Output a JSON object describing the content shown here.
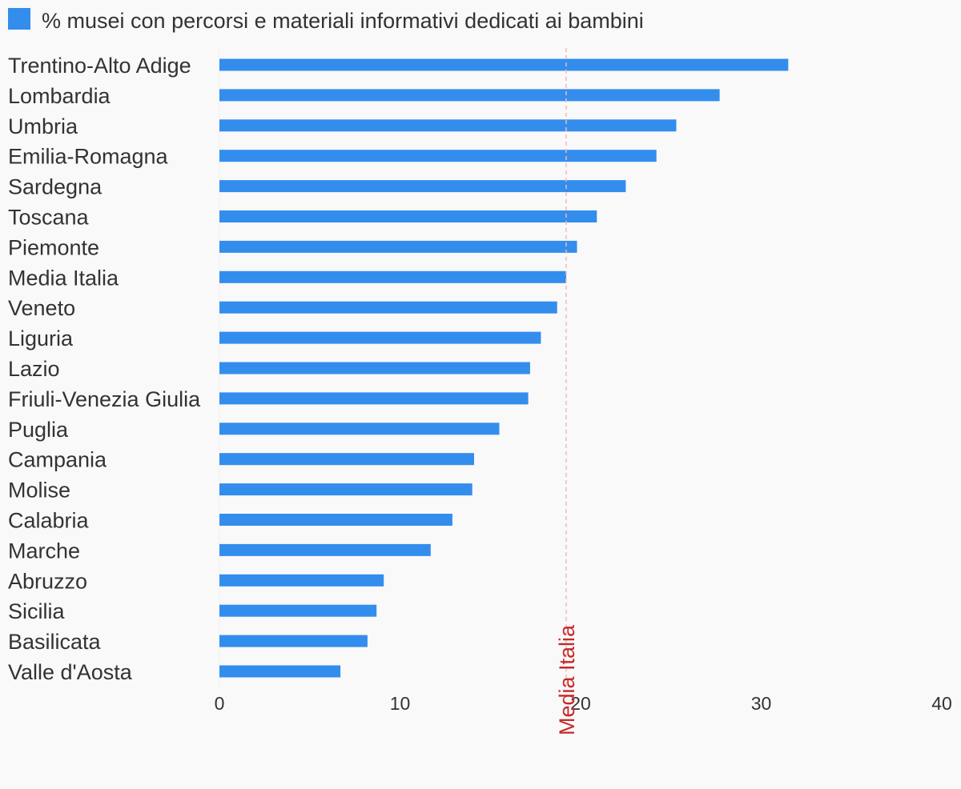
{
  "legend": {
    "label": "% musei con percorsi e materiali informativi dedicati ai bambini"
  },
  "colors": {
    "bar": "#338ded",
    "highlight": "#c62828",
    "reference_line": "#f2b8bd",
    "text": "#333333",
    "background": "#f9f9f9"
  },
  "chart_data": {
    "type": "bar",
    "orientation": "horizontal",
    "title": "",
    "xlabel": "",
    "ylabel": "",
    "series": [
      {
        "name": "% musei con percorsi e materiali informativi dedicati ai bambini"
      }
    ],
    "categories": [
      "Trentino-Alto Adige",
      "Lombardia",
      "Umbria",
      "Emilia-Romagna",
      "Sardegna",
      "Toscana",
      "Piemonte",
      "Media Italia",
      "Veneto",
      "Liguria",
      "Lazio",
      "Friuli-Venezia Giulia",
      "Puglia",
      "Campania",
      "Molise",
      "Calabria",
      "Marche",
      "Abruzzo",
      "Sicilia",
      "Basilicata",
      "Valle d'Aosta"
    ],
    "values": [
      31.5,
      27.7,
      25.3,
      24.2,
      22.5,
      20.9,
      19.8,
      19.2,
      18.7,
      17.8,
      17.2,
      17.1,
      15.5,
      14.1,
      14.0,
      12.9,
      11.7,
      9.1,
      8.7,
      8.2,
      6.7
    ],
    "highlight_category": "Media Italia",
    "reference_line": {
      "value": 19.2,
      "label": "Media Italia"
    },
    "xlim": [
      0,
      40
    ],
    "xticks": [
      0,
      10,
      20,
      30,
      40
    ],
    "grid": false,
    "legend_position": "top-left"
  }
}
